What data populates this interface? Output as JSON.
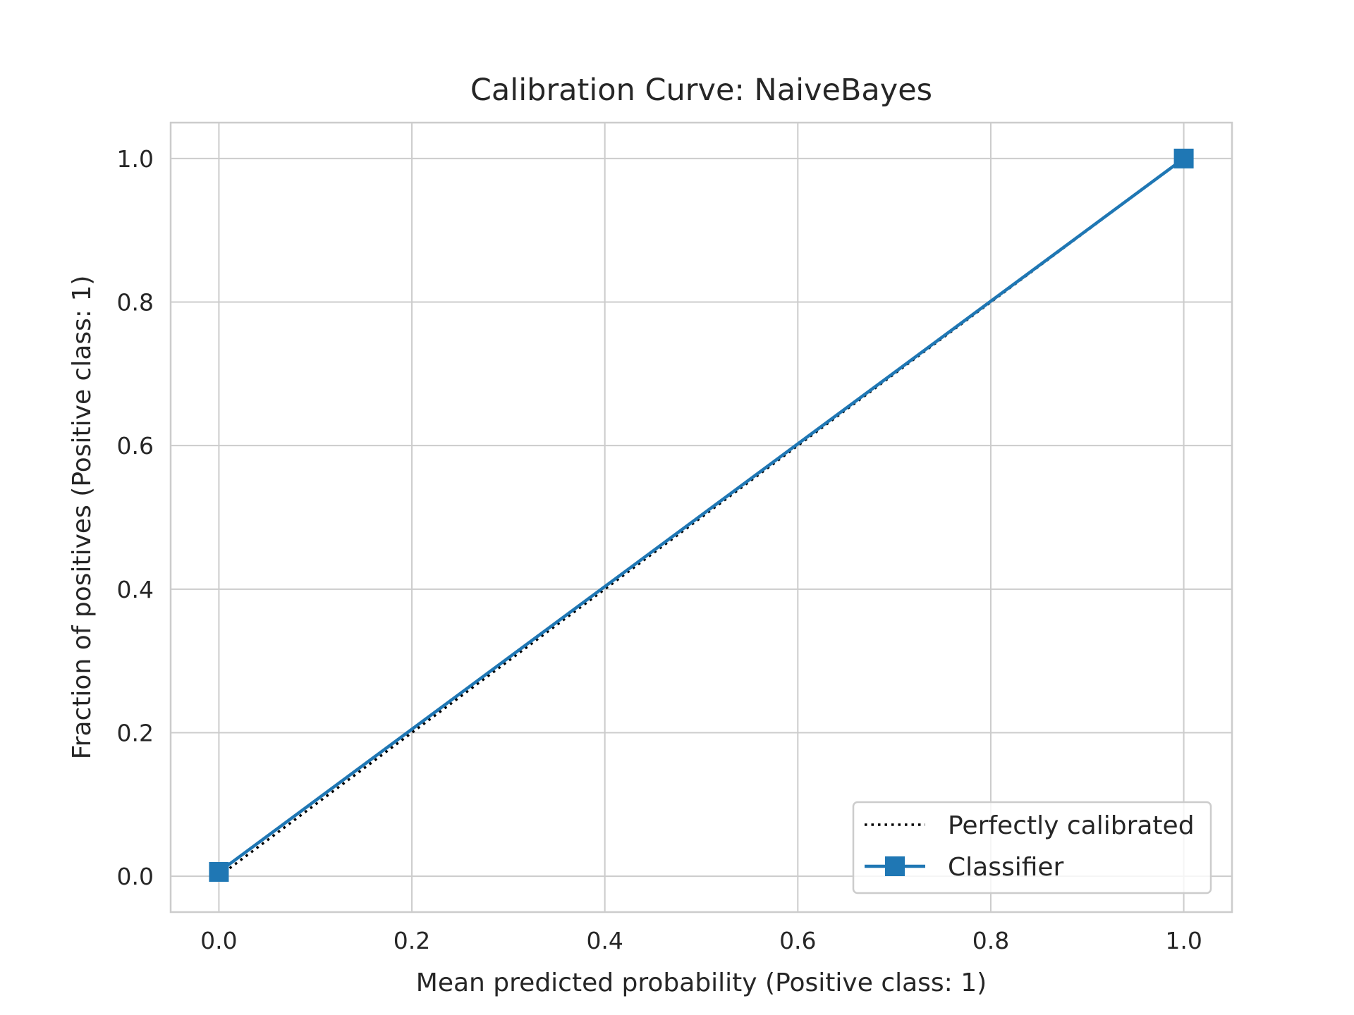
{
  "chart_data": {
    "type": "line",
    "title": "Calibration Curve: NaiveBayes",
    "xlabel": "Mean predicted probability (Positive class: 1)",
    "ylabel": "Fraction of positives (Positive class: 1)",
    "xlim": [
      -0.05,
      1.05
    ],
    "ylim": [
      -0.05,
      1.05
    ],
    "xticks": [
      0.0,
      0.2,
      0.4,
      0.6,
      0.8,
      1.0
    ],
    "yticks": [
      0.0,
      0.2,
      0.4,
      0.6,
      0.8,
      1.0
    ],
    "xtick_labels": [
      "0.0",
      "0.2",
      "0.4",
      "0.6",
      "0.8",
      "1.0"
    ],
    "ytick_labels": [
      "0.0",
      "0.2",
      "0.4",
      "0.6",
      "0.8",
      "1.0"
    ],
    "grid": true,
    "legend_position": "bottom-right",
    "series": [
      {
        "name": "Perfectly calibrated",
        "style": "dotted",
        "color": "#000000",
        "x": [
          0.0,
          1.0
        ],
        "y": [
          0.0,
          1.0
        ]
      },
      {
        "name": "Classifier",
        "style": "solid",
        "marker": "square",
        "color": "#1f77b4",
        "x": [
          0.0,
          1.0
        ],
        "y": [
          0.006,
          1.0
        ]
      }
    ]
  }
}
